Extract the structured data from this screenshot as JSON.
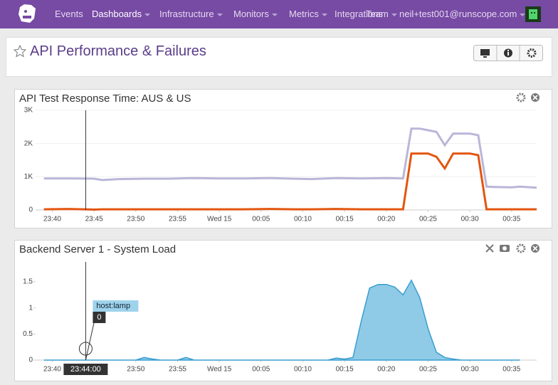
{
  "nav": {
    "items": [
      "Events",
      "Dashboards",
      "Infrastructure",
      "Monitors",
      "Metrics",
      "Integrations",
      "Team"
    ],
    "user": "neil+test001@runscope.com"
  },
  "dashboard": {
    "title": "API Performance & Failures"
  },
  "chart_data": [
    {
      "type": "line",
      "title": "API Test Response Time: AUS & US",
      "x": [
        "23:39",
        "23:42",
        "23:45",
        "23:46",
        "23:48",
        "23:51",
        "23:54",
        "23:57",
        "00:00",
        "00:03",
        "00:06",
        "00:09",
        "00:11",
        "00:14",
        "00:17",
        "00:20",
        "00:22",
        "00:23",
        "00:24",
        "00:25",
        "00:26",
        "00:27",
        "00:28",
        "00:29",
        "00:30",
        "00:31",
        "00:32",
        "00:33",
        "00:35",
        "00:36",
        "00:38"
      ],
      "series": [
        {
          "color": "#b9b6d9",
          "values": [
            950,
            950,
            940,
            900,
            930,
            940,
            940,
            960,
            950,
            950,
            960,
            940,
            930,
            960,
            950,
            960,
            950,
            2450,
            2450,
            2400,
            2350,
            1950,
            2300,
            2300,
            2300,
            2250,
            700,
            690,
            680,
            700,
            670
          ]
        },
        {
          "color": "#e3550f",
          "values": [
            20,
            30,
            10,
            20,
            20,
            20,
            20,
            20,
            20,
            20,
            30,
            20,
            20,
            30,
            20,
            20,
            20,
            1700,
            1700,
            1700,
            1600,
            1250,
            1700,
            1700,
            1700,
            1650,
            20,
            20,
            20,
            20,
            20
          ]
        }
      ],
      "xlim": [
        "23:38",
        "00:38"
      ],
      "xticks": [
        "23:40",
        "23:45",
        "23:50",
        "23:55",
        {
          "value": "00:00",
          "label": "Wed 15"
        },
        "00:05",
        "00:10",
        "00:15",
        "00:20",
        "00:25",
        "00:30",
        "00:35"
      ],
      "ylim": [
        0,
        3000
      ],
      "yticks": [
        0,
        {
          "value": 1000,
          "label": "1K"
        },
        {
          "value": 2000,
          "label": "2K"
        },
        {
          "value": 3000,
          "label": "3K"
        }
      ],
      "grid": true,
      "hover": {
        "x": "23:44"
      }
    },
    {
      "type": "area",
      "title": "Backend Server 1 - System Load",
      "x": [
        "23:39",
        "23:50",
        "23:51",
        "23:52",
        "23:53",
        "23:55",
        "23:56",
        "23:57",
        "00:13",
        "00:14",
        "00:15",
        "00:16",
        "00:17",
        "00:18",
        "00:19",
        "00:20",
        "00:21",
        "00:22",
        "00:23",
        "00:24",
        "00:25",
        "00:26",
        "00:27",
        "00:28",
        "00:29",
        "00:36"
      ],
      "series": [
        {
          "color": "#3a9dd1",
          "fill": "#8fcbe6",
          "values": [
            0,
            0,
            0.05,
            0.02,
            0,
            0,
            0.05,
            0,
            0,
            0.04,
            0.02,
            0.05,
            0.75,
            1.38,
            1.45,
            1.45,
            1.4,
            1.25,
            1.53,
            1.2,
            0.6,
            0.15,
            0.05,
            0.02,
            0,
            0
          ]
        }
      ],
      "xlim": [
        "23:38",
        "00:38"
      ],
      "xticks": [
        "23:40",
        "23:50",
        "23:55",
        {
          "value": "00:00",
          "label": "Wed 15"
        },
        "00:05",
        "00:10",
        "00:15",
        "00:20",
        "00:25",
        "00:30",
        "00:35"
      ],
      "ylim": [
        0,
        1.8
      ],
      "yticks": [
        0,
        0.5,
        1,
        1.5
      ],
      "grid": false,
      "hover": {
        "x": "23:44",
        "time_label": "23:44:00",
        "host": "host:lamp",
        "value": 0
      }
    }
  ]
}
